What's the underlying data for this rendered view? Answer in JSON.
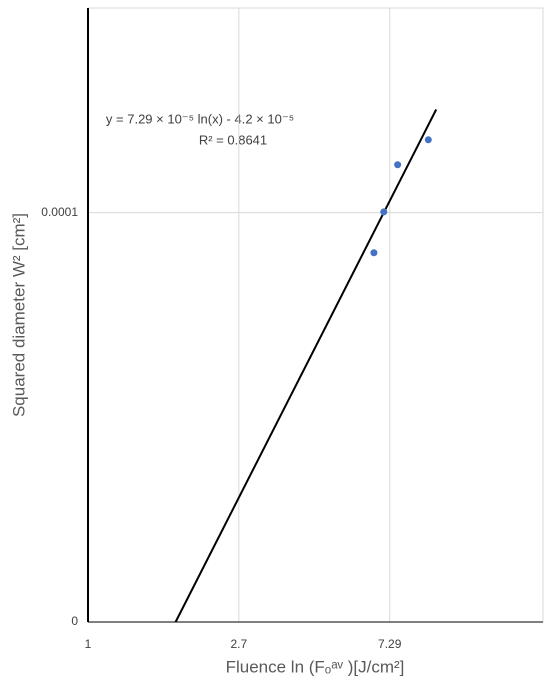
{
  "chart_data": {
    "type": "scatter",
    "x_label": "Fluence ln (Fₒᵃᵛ )[J/cm²]",
    "y_label": "Squared diameter W² [cm²]",
    "annotations": [
      "y = 7.29 × 10⁻⁵ ln(x) - 4.2 × 10⁻⁵",
      "R² = 0.8641"
    ],
    "x_scale": "log",
    "grid": true,
    "series": [
      {
        "color": "#4472c4",
        "x": [
          6.57,
          7.01,
          7.68,
          9.4
        ],
        "values": [
          9.02e-05,
          0.0001002,
          0.0001117,
          0.0001178
        ]
      }
    ],
    "trendline": {
      "color": "#000000",
      "x": [
        1.78,
        9.9
      ],
      "values": [
        0,
        0.0001252
      ]
    },
    "xlim": [
      1,
      20
    ],
    "xticks": [
      1,
      2.7,
      7.29
    ],
    "ylim": [
      0,
      0.00015
    ],
    "yticks": [
      0,
      0.0001
    ]
  }
}
